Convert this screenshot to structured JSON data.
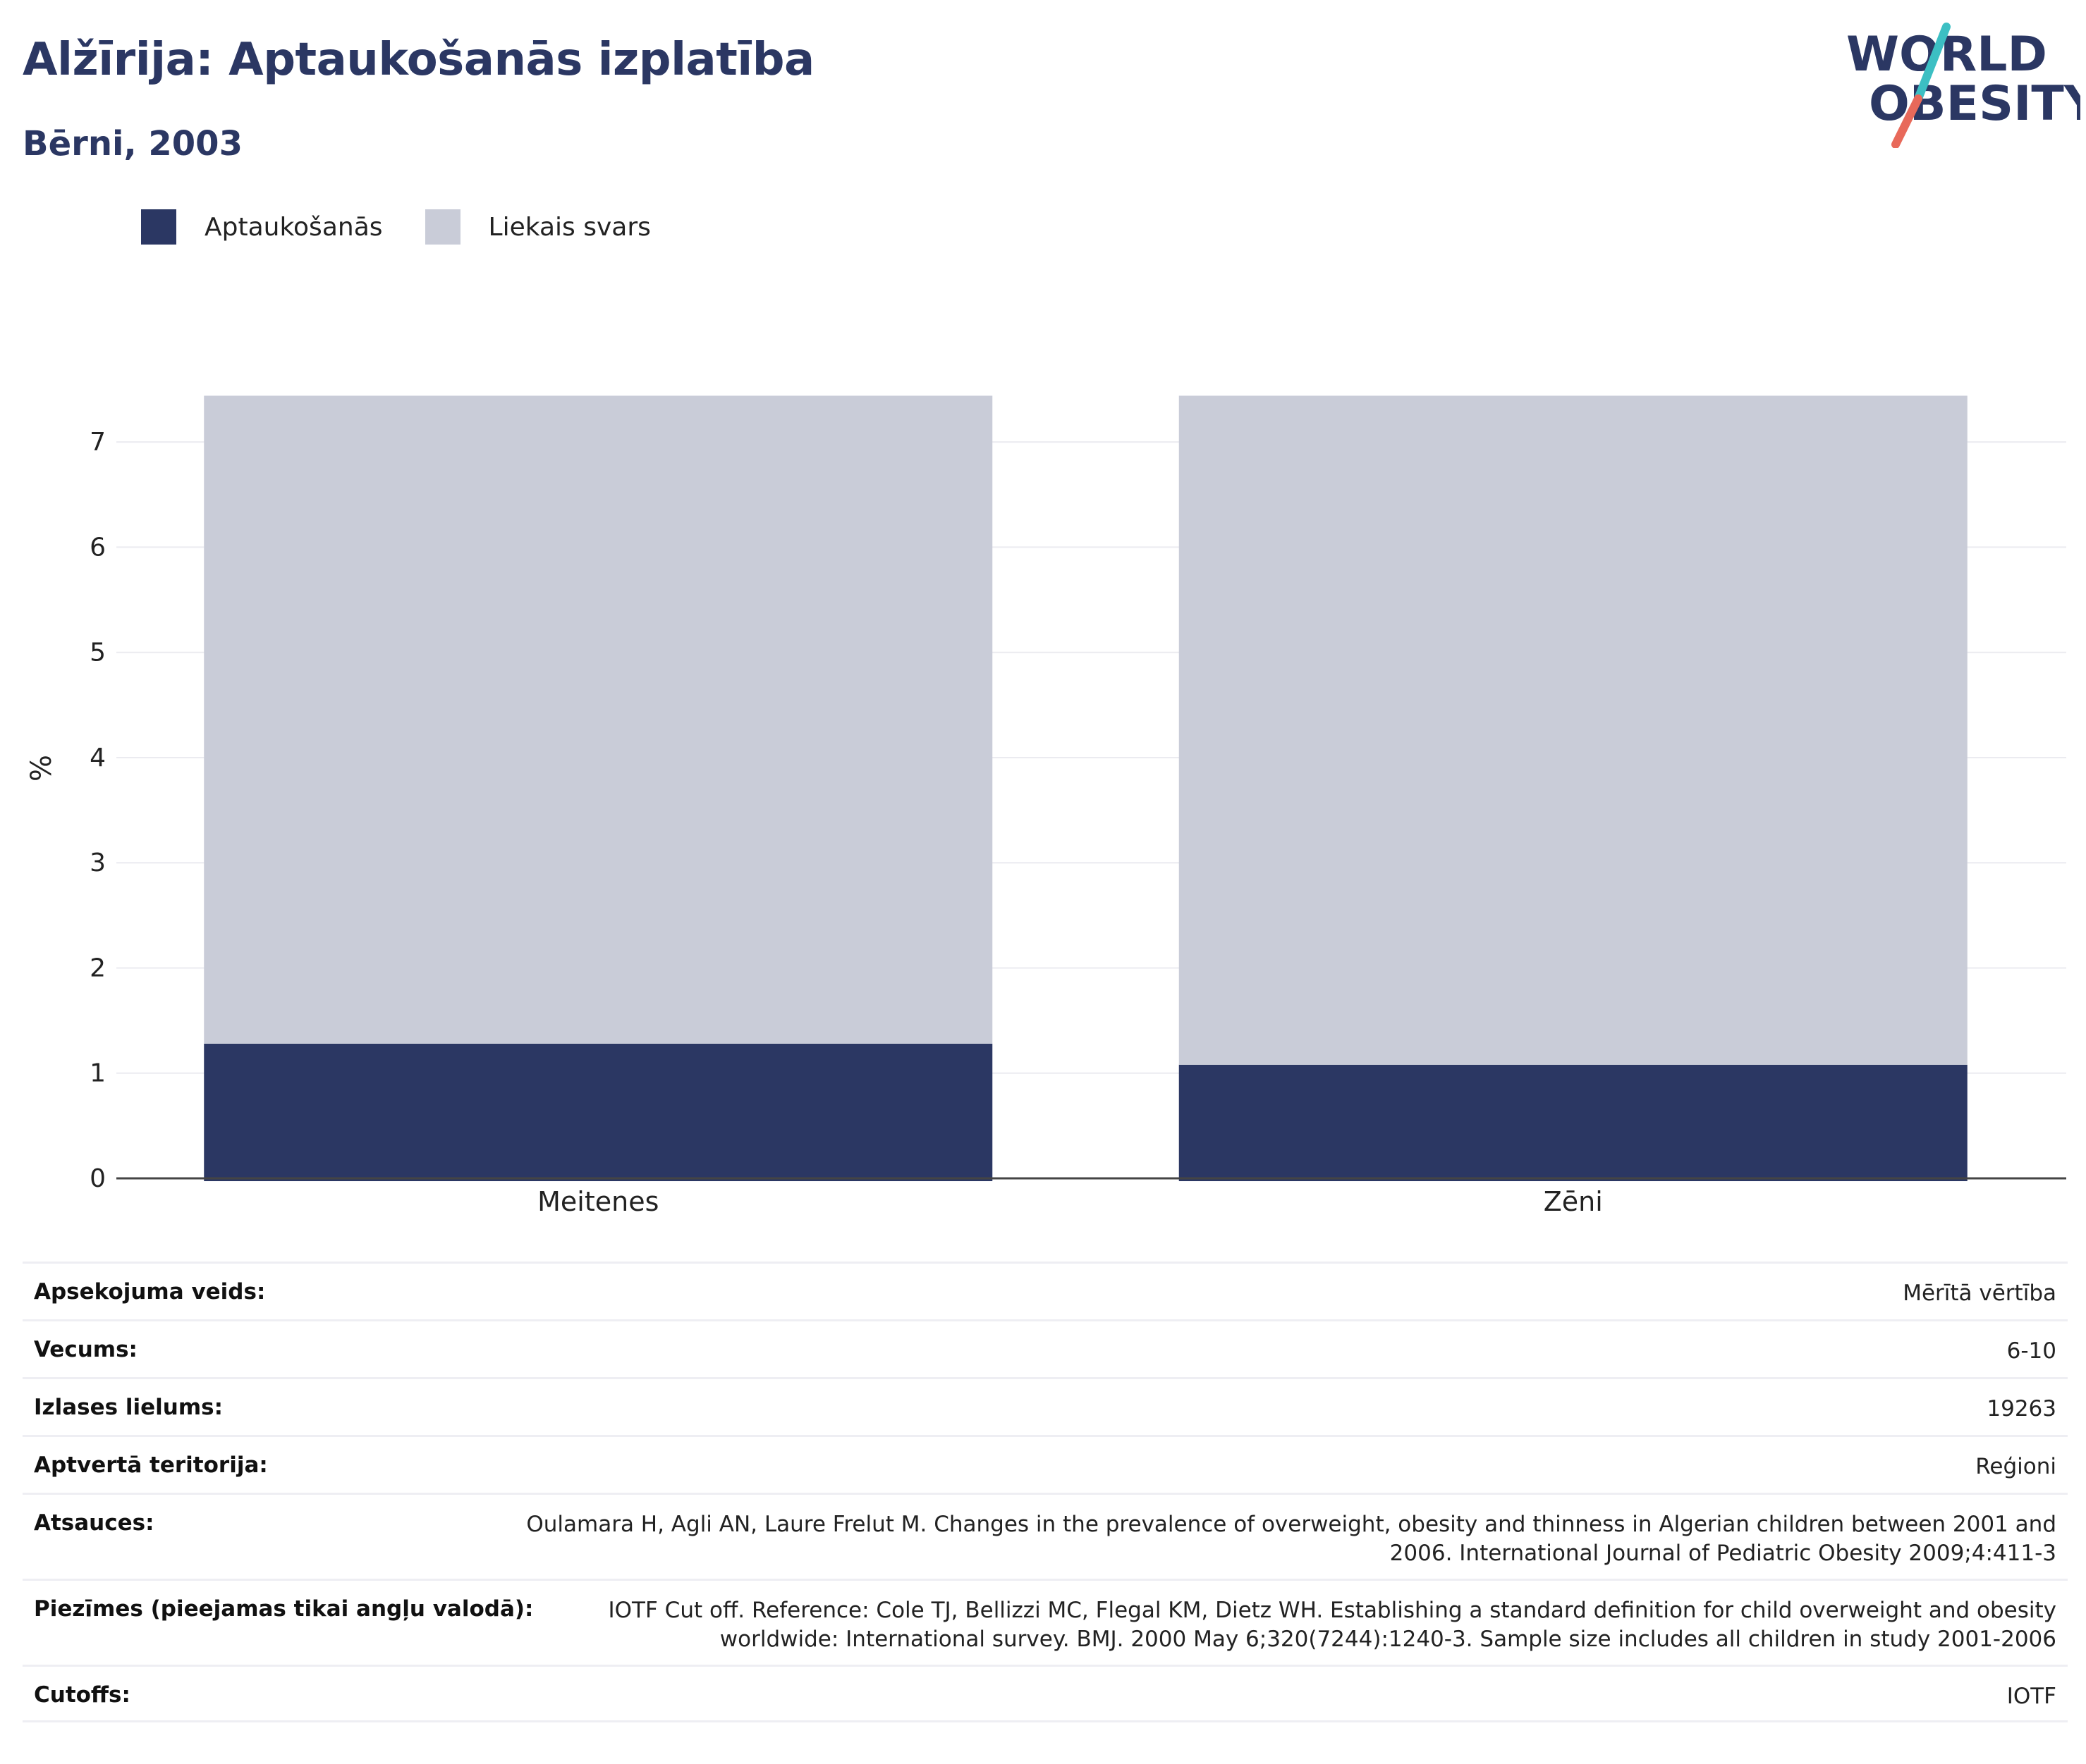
{
  "header": {
    "title": "Alžīrija: Aptaukošanās izplatība",
    "subtitle": "Bērni, 2003"
  },
  "logo": {
    "line1": "WORLD",
    "line2": "OBESITY"
  },
  "legend": [
    {
      "label": "Aptaukošanās",
      "color": "#2b3763"
    },
    {
      "label": "Liekais svars",
      "color": "#c9ccd8"
    }
  ],
  "chart_data": {
    "type": "bar",
    "stacked": true,
    "categories": [
      "Meitenes",
      "Zēni"
    ],
    "series": [
      {
        "name": "Aptaukošanās",
        "color": "#2b3763",
        "values": [
          1.28,
          1.08
        ]
      },
      {
        "name": "Liekais svars",
        "color": "#c9ccd8",
        "values": [
          6.16,
          6.36
        ]
      }
    ],
    "ylabel": "%",
    "ylim": [
      0,
      7.45
    ],
    "yticks": [
      0,
      1,
      2,
      3,
      4,
      5,
      6,
      7
    ],
    "grid": true
  },
  "info": [
    {
      "key": "Apsekojuma veids:",
      "value": "Mērītā vērtība"
    },
    {
      "key": "Vecums:",
      "value": "6-10"
    },
    {
      "key": "Izlases lielums:",
      "value": "19263"
    },
    {
      "key": "Aptvertā teritorija:",
      "value": "Reģioni"
    },
    {
      "key": "Atsauces:",
      "value": "Oulamara H, Agli AN, Laure Frelut M. Changes in the prevalence of overweight, obesity and thinness in Algerian children between 2001 and 2006. International Journal of Pediatric Obesity 2009;4:411-3"
    },
    {
      "key": "Piezīmes (pieejamas tikai angļu valodā):",
      "value": "IOTF Cut off. Reference: Cole TJ, Bellizzi MC, Flegal KM, Dietz WH. Establishing a standard definition for child overweight and obesity worldwide: International survey. BMJ. 2000 May 6;320(7244):1240-3. Sample size includes all children in study 2001-2006"
    },
    {
      "key": "Cutoffs:",
      "value": "IOTF"
    }
  ]
}
